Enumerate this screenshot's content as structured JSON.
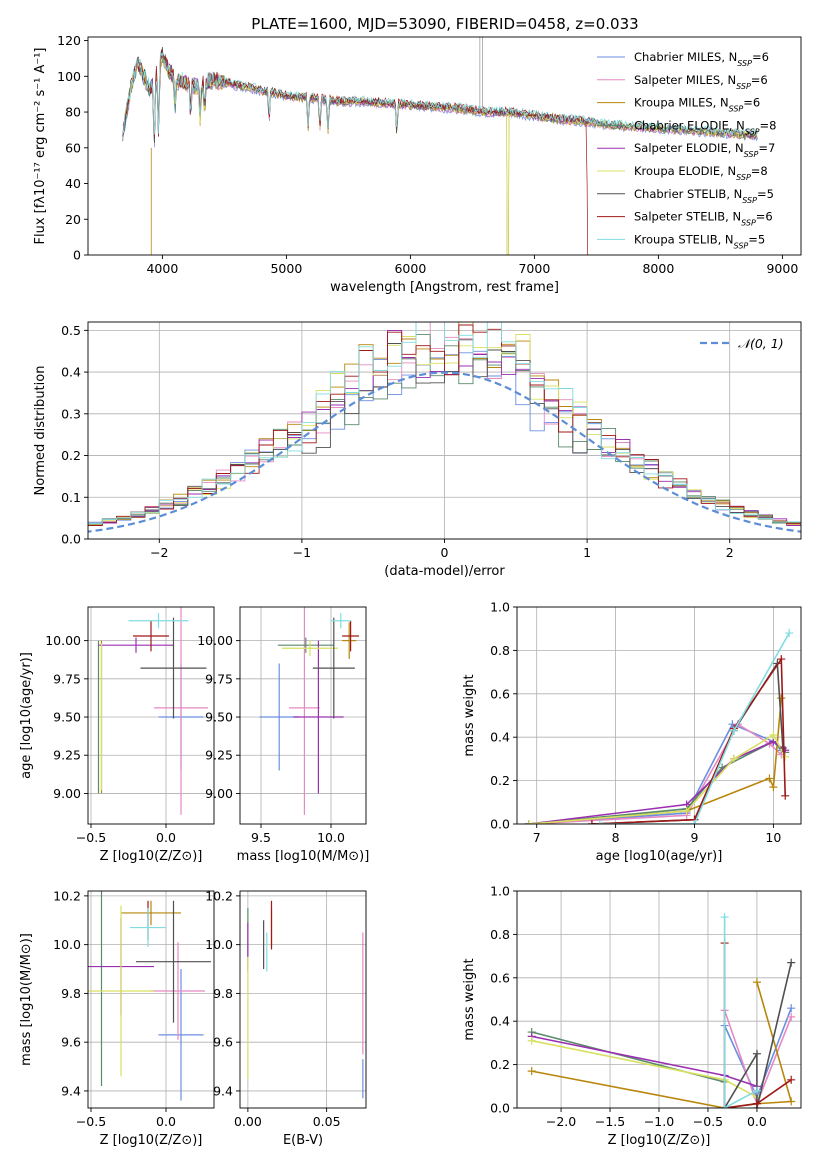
{
  "figure_title": "PLATE=1600, MJD=53090, FIBERID=0458, z=0.033",
  "model_colors": [
    "#6b8fe0",
    "#e58ac4",
    "#b8860b",
    "#5a8a6a",
    "#9a30b0",
    "#d8e060",
    "#505050",
    "#a01818",
    "#80dce0"
  ],
  "chart_data": [
    {
      "id": "spectrum",
      "type": "line",
      "title": "PLATE=1600, MJD=53090, FIBERID=0458, z=0.033",
      "xlabel": "wavelength [Angstrom, rest frame]",
      "ylabel": "Flux [fλ10⁻¹⁷ erg cm⁻² s⁻¹ A⁻¹]",
      "xlim": [
        3400,
        9150
      ],
      "ylim": [
        0,
        122
      ],
      "xticks": [
        4000,
        5000,
        6000,
        7000,
        8000,
        9000
      ],
      "yticks": [
        0,
        20,
        40,
        60,
        80,
        100,
        120
      ],
      "grid": false,
      "legend_position": "top-right",
      "legend": [
        "Chabrier MILES, NSSP=6",
        "Salpeter MILES, NSSP=6",
        "Kroupa MILES, NSSP=6",
        "Chabrier ELODIE, NSSP=8",
        "Salpeter ELODIE, NSSP=7",
        "Kroupa ELODIE, NSSP=8",
        "Chabrier STELIB, NSSP=5",
        "Salpeter STELIB, NSSP=6",
        "Kroupa STELIB, NSSP=5"
      ],
      "continuum": {
        "x": [
          3680,
          3750,
          3800,
          3900,
          3950,
          4000,
          4050,
          4100,
          4200,
          4300,
          4400,
          4500,
          4600,
          4700,
          4800,
          4900,
          5000,
          5200,
          5400,
          5600,
          5800,
          6000,
          6200,
          6400,
          6600,
          6800,
          7000,
          7200,
          7400,
          7600,
          7800,
          8000,
          8200,
          8400,
          8600,
          8800
        ],
        "y": [
          68,
          95,
          108,
          92,
          100,
          112,
          104,
          98,
          96,
          94,
          98,
          97,
          95,
          94,
          92,
          91,
          89,
          88,
          86,
          86,
          85,
          84,
          83,
          82,
          80,
          80,
          78,
          76,
          75,
          73,
          72,
          71,
          70,
          69,
          68,
          67
        ]
      },
      "absorption_lines": [
        3934,
        3969,
        4102,
        4227,
        4304,
        4340,
        4861,
        5175,
        5270,
        5335,
        5890,
        6563
      ]
    },
    {
      "id": "residual-histogram",
      "type": "step",
      "xlabel": "(data-model)/error",
      "ylabel": "Normed distribution",
      "xlim": [
        -2.5,
        2.5
      ],
      "ylim": [
        0,
        0.52
      ],
      "xticks": [
        -2,
        -1,
        0,
        1,
        2
      ],
      "yticks": [
        0,
        0.1,
        0.2,
        0.3,
        0.4,
        0.5
      ],
      "grid": true,
      "legend_position": "top-right",
      "legend": [
        "𝒩(0, 1)"
      ],
      "reference_curve": "normal pdf, mean 0, sd 1",
      "bin_width": 0.1
    },
    {
      "id": "age-vs-metallicity",
      "type": "errorbar",
      "xlabel": "Z [log10(Z/Z⊙)]",
      "ylabel": "age  [log10(age/yr)]",
      "xlim": [
        -0.52,
        0.32
      ],
      "ylim": [
        8.8,
        10.22
      ],
      "xticks": [
        -0.5,
        0.0
      ],
      "yticks": [
        9.0,
        9.25,
        9.5,
        9.75,
        10.0
      ],
      "grid": true,
      "points": [
        {
          "x": 0.1,
          "xerr": 0.15,
          "y": 9.5,
          "yerr": 0.35
        },
        {
          "x": 0.1,
          "xerr": 0.18,
          "y": 9.56,
          "yerr": 0.7
        },
        {
          "x": -0.43,
          "xerr": 0.0,
          "y": 9.5,
          "yerr": 0.5
        },
        {
          "x": -0.45,
          "xerr": 0.0,
          "y": 9.5,
          "yerr": 0.5
        },
        {
          "x": -0.2,
          "xerr": 0.25,
          "y": 9.97,
          "yerr": 0.05
        },
        {
          "x": -0.43,
          "xerr": 0.0,
          "y": 9.5,
          "yerr": 0.48
        },
        {
          "x": 0.05,
          "xerr": 0.22,
          "y": 9.82,
          "yerr": 0.33
        },
        {
          "x": -0.1,
          "xerr": 0.12,
          "y": 10.03,
          "yerr": 0.1
        },
        {
          "x": -0.05,
          "xerr": 0.2,
          "y": 10.13,
          "yerr": 0.05
        }
      ]
    },
    {
      "id": "age-vs-mass",
      "type": "errorbar",
      "xlabel": "mass [log10(M/M⊙)]",
      "ylabel": "",
      "xlim": [
        9.35,
        10.25
      ],
      "ylim": [
        8.8,
        10.22
      ],
      "xticks": [
        9.5,
        10.0
      ],
      "yticks": [
        9.0,
        9.25,
        9.5,
        9.75,
        10.0
      ],
      "grid": true,
      "points": [
        {
          "x": 9.63,
          "xerr": 0.14,
          "y": 9.5,
          "yerr": 0.35
        },
        {
          "x": 9.81,
          "xerr": 0.11,
          "y": 9.56,
          "yerr": 0.7
        },
        {
          "x": 10.13,
          "xerr": 0.05,
          "y": 10.0,
          "yerr": 0.12
        },
        {
          "x": 9.82,
          "xerr": 0.2,
          "y": 9.97,
          "yerr": 0.05
        },
        {
          "x": 9.91,
          "xerr": 0.18,
          "y": 9.5,
          "yerr": 0.5
        },
        {
          "x": 9.85,
          "xerr": 0.2,
          "y": 9.95,
          "yerr": 0.05
        },
        {
          "x": 10.02,
          "xerr": 0.15,
          "y": 9.82,
          "yerr": 0.33
        },
        {
          "x": 10.14,
          "xerr": 0.06,
          "y": 10.03,
          "yerr": 0.1
        },
        {
          "x": 10.07,
          "xerr": 0.07,
          "y": 10.13,
          "yerr": 0.05
        }
      ]
    },
    {
      "id": "mass-weight-vs-age",
      "type": "line",
      "xlabel": "age  [log10(age/yr)]",
      "ylabel": "mass weight",
      "xlim": [
        6.75,
        10.35
      ],
      "ylim": [
        0,
        1.0
      ],
      "xticks": [
        7,
        8,
        9,
        10
      ],
      "yticks": [
        0.0,
        0.2,
        0.4,
        0.6,
        0.8,
        1.0
      ],
      "grid": true,
      "series": [
        {
          "x": [
            6.9,
            8.9,
            9.48,
            10.0,
            10.1
          ],
          "values": [
            0.0,
            0.05,
            0.46,
            0.38,
            0.34
          ]
        },
        {
          "x": [
            6.9,
            8.9,
            9.55,
            9.95,
            10.1
          ],
          "values": [
            0.0,
            0.04,
            0.46,
            0.37,
            0.32
          ]
        },
        {
          "x": [
            6.9,
            8.9,
            9.95,
            10.0,
            10.1
          ],
          "values": [
            0.0,
            0.06,
            0.21,
            0.17,
            0.58
          ]
        },
        {
          "x": [
            6.9,
            8.9,
            9.35,
            10.0,
            10.15
          ],
          "values": [
            0.0,
            0.07,
            0.26,
            0.38,
            0.33
          ]
        },
        {
          "x": [
            6.9,
            8.9,
            9.5,
            10.0,
            10.15
          ],
          "values": [
            0.0,
            0.09,
            0.3,
            0.38,
            0.34
          ]
        },
        {
          "x": [
            6.9,
            8.9,
            9.5,
            10.0,
            10.15
          ],
          "values": [
            0.0,
            0.06,
            0.3,
            0.41,
            0.31
          ]
        },
        {
          "x": [
            7.7,
            9.0,
            9.5,
            10.05,
            10.12
          ],
          "values": [
            0.0,
            0.02,
            0.43,
            0.74,
            0.35
          ]
        },
        {
          "x": [
            7.7,
            9.0,
            9.5,
            10.1,
            10.15
          ],
          "values": [
            0.0,
            0.02,
            0.44,
            0.76,
            0.13
          ]
        },
        {
          "x": [
            7.8,
            9.0,
            9.5,
            10.2
          ],
          "values": [
            0.0,
            0.0,
            0.43,
            0.88
          ]
        }
      ]
    },
    {
      "id": "mass-vs-metallicity",
      "type": "errorbar",
      "xlabel": "Z [log10(Z/Z⊙)]",
      "ylabel": "mass [log10(M/M⊙)]",
      "xlim": [
        -0.52,
        0.32
      ],
      "ylim": [
        9.33,
        10.22
      ],
      "xticks": [
        -0.5,
        0.0
      ],
      "yticks": [
        9.4,
        9.6,
        9.8,
        10.0,
        10.2
      ],
      "grid": true,
      "points": [
        {
          "x": 0.1,
          "xerr": 0.15,
          "y": 9.63,
          "yerr": 0.27
        },
        {
          "x": 0.08,
          "xerr": 0.18,
          "y": 9.81,
          "yerr": 0.2
        },
        {
          "x": -0.1,
          "xerr": 0.2,
          "y": 10.13,
          "yerr": 0.05
        },
        {
          "x": -0.43,
          "xerr": 0.0,
          "y": 9.82,
          "yerr": 0.4
        },
        {
          "x": -0.3,
          "xerr": 0.22,
          "y": 9.91,
          "yerr": 0.2
        },
        {
          "x": -0.3,
          "xerr": 0.22,
          "y": 9.81,
          "yerr": 0.35
        },
        {
          "x": 0.05,
          "xerr": 0.25,
          "y": 9.93,
          "yerr": 0.25
        },
        {
          "x": -0.12,
          "xerr": 0.0,
          "y": 10.1,
          "yerr": 0.08
        },
        {
          "x": -0.12,
          "xerr": 0.12,
          "y": 10.07,
          "yerr": 0.08
        }
      ]
    },
    {
      "id": "mass-vs-extinction",
      "type": "errorbar",
      "xlabel": "E(B-V)",
      "ylabel": "",
      "xlim": [
        -0.005,
        0.075
      ],
      "ylim": [
        9.33,
        10.22
      ],
      "xticks": [
        0.0,
        0.05
      ],
      "yticks": [
        9.4,
        9.6,
        9.8,
        10.0,
        10.2
      ],
      "grid": true,
      "points": [
        {
          "x": 0.073,
          "xerr": 0.0,
          "y": 9.45,
          "yerr": 0.08
        },
        {
          "x": 0.073,
          "xerr": 0.0,
          "y": 9.8,
          "yerr": 0.25
        },
        {
          "x": 0.015,
          "xerr": 0.0,
          "y": 10.07,
          "yerr": 0.08
        },
        {
          "x": 0.0,
          "xerr": 0.0,
          "y": 10.05,
          "yerr": 0.1
        },
        {
          "x": 0.0,
          "xerr": 0.0,
          "y": 9.99,
          "yerr": 0.1
        },
        {
          "x": 0.0,
          "xerr": 0.0,
          "y": 9.7,
          "yerr": 0.25
        },
        {
          "x": 0.01,
          "xerr": 0.0,
          "y": 10.0,
          "yerr": 0.1
        },
        {
          "x": 0.015,
          "xerr": 0.0,
          "y": 10.08,
          "yerr": 0.1
        },
        {
          "x": 0.012,
          "xerr": 0.0,
          "y": 9.97,
          "yerr": 0.08
        }
      ]
    },
    {
      "id": "mass-weight-vs-metallicity",
      "type": "line",
      "xlabel": "Z [log10(Z/Z⊙)]",
      "ylabel": "mass weight",
      "xlim": [
        -2.45,
        0.45
      ],
      "ylim": [
        0,
        1.0
      ],
      "xticks": [
        -2.0,
        -1.5,
        -1.0,
        -0.5,
        0.0
      ],
      "yticks": [
        0.0,
        0.2,
        0.4,
        0.6,
        0.8,
        1.0
      ],
      "grid": true,
      "series": [
        {
          "x": [
            -0.33,
            0.0,
            0.35
          ],
          "values": [
            0.38,
            0.05,
            0.46
          ]
        },
        {
          "x": [
            -0.33,
            0.0,
            0.35
          ],
          "values": [
            0.45,
            0.02,
            0.42
          ]
        },
        {
          "x": [
            -2.3,
            -0.33,
            0.0,
            0.35,
            0.0
          ],
          "values": [
            0.17,
            0.0,
            0.02,
            0.03,
            0.58
          ]
        },
        {
          "x": [
            -2.3,
            -0.33,
            -0.33
          ],
          "values": [
            0.35,
            0.12,
            0.0
          ]
        },
        {
          "x": [
            -2.3,
            -0.33,
            0.0
          ],
          "values": [
            0.33,
            0.15,
            0.1
          ]
        },
        {
          "x": [
            -2.3,
            -0.33,
            0.0
          ],
          "values": [
            0.31,
            0.13,
            0.05
          ]
        },
        {
          "x": [
            -0.33,
            0.0,
            0.0,
            0.35
          ],
          "values": [
            0.0,
            0.25,
            0.0,
            0.67
          ]
        },
        {
          "x": [
            -0.33,
            -0.33,
            0.0,
            0.35
          ],
          "values": [
            0.76,
            0.0,
            0.02,
            0.13
          ]
        },
        {
          "x": [
            -0.33,
            -0.33,
            0.0
          ],
          "values": [
            0.88,
            0.0,
            0.08
          ]
        }
      ]
    }
  ]
}
